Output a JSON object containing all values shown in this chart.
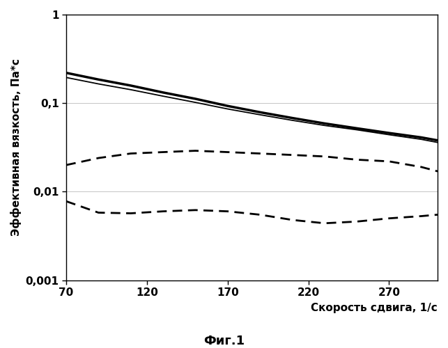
{
  "title": "",
  "xlabel": "Скорость сдвига, 1/с",
  "ylabel": "Эффективная вязкость, Па*с",
  "caption": "Фиг.1",
  "xmin": 70,
  "xmax": 300,
  "ymin": 0.001,
  "ymax": 1,
  "xticks": [
    70,
    120,
    170,
    220,
    270
  ],
  "background_color": "#ffffff",
  "line1_x": [
    70,
    90,
    110,
    130,
    150,
    170,
    190,
    210,
    230,
    250,
    270,
    290,
    300
  ],
  "line1_y": [
    0.22,
    0.185,
    0.158,
    0.132,
    0.112,
    0.093,
    0.079,
    0.068,
    0.059,
    0.052,
    0.046,
    0.041,
    0.038
  ],
  "line2_x": [
    70,
    90,
    110,
    130,
    150,
    170,
    190,
    210,
    230,
    250,
    270,
    290,
    300
  ],
  "line2_y": [
    0.195,
    0.165,
    0.142,
    0.12,
    0.102,
    0.086,
    0.074,
    0.064,
    0.056,
    0.05,
    0.044,
    0.039,
    0.036
  ],
  "line3_x": [
    70,
    90,
    110,
    130,
    150,
    170,
    190,
    210,
    230,
    250,
    270,
    290,
    300
  ],
  "line3_y": [
    0.02,
    0.024,
    0.027,
    0.028,
    0.029,
    0.028,
    0.027,
    0.026,
    0.025,
    0.023,
    0.022,
    0.019,
    0.017
  ],
  "line4_x": [
    70,
    90,
    110,
    130,
    150,
    170,
    190,
    210,
    230,
    250,
    270,
    290,
    300
  ],
  "line4_y": [
    0.0078,
    0.0058,
    0.0057,
    0.006,
    0.0062,
    0.006,
    0.0055,
    0.0048,
    0.0044,
    0.0046,
    0.005,
    0.0053,
    0.0055
  ],
  "line1_color": "#000000",
  "line1_lw": 2.5,
  "line2_color": "#000000",
  "line2_lw": 1.3,
  "line3_color": "#000000",
  "line3_lw": 2.0,
  "line4_color": "#000000",
  "line4_lw": 2.0,
  "dash_pattern": [
    5,
    3
  ],
  "ytick_labels": [
    "0,001",
    "0,01",
    "0,1",
    "1"
  ],
  "ytick_values": [
    0.001,
    0.01,
    0.1,
    1
  ],
  "fontsize_axis_label": 11,
  "fontsize_tick": 11,
  "fontsize_caption": 13,
  "grid_color": "#bbbbbb",
  "grid_lw": 0.6
}
